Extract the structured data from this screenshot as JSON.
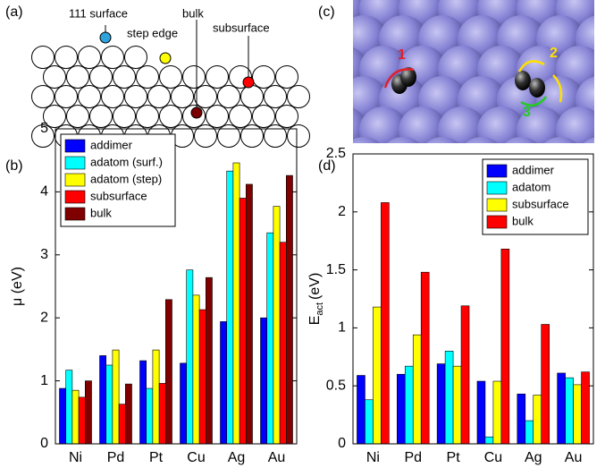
{
  "panel_labels": [
    "(a)",
    "(b)",
    "(c)",
    "(d)"
  ],
  "schematic": {
    "labels": [
      "111 surface",
      "step edge",
      "bulk",
      "subsurface"
    ]
  },
  "snapshot": {
    "labels": [
      "1",
      "2",
      "3"
    ]
  },
  "chart_data": [
    {
      "type": "bar",
      "ylabel": {
        "text": "μ (eV)"
      },
      "categories": [
        "Ni",
        "Pd",
        "Pt",
        "Cu",
        "Ag",
        "Au"
      ],
      "ylim": [
        0,
        5
      ],
      "yticks": [
        0,
        1,
        2,
        3,
        4,
        5
      ],
      "legend": "upper-left",
      "series": [
        {
          "name": "addimer",
          "color": "#0000ff",
          "values": [
            0.88,
            1.4,
            1.32,
            1.28,
            1.94,
            2.0
          ]
        },
        {
          "name": "adatom (surf.)",
          "color": "#00ffff",
          "values": [
            1.17,
            1.25,
            0.88,
            2.76,
            4.33,
            3.35
          ]
        },
        {
          "name": "adatom (step)",
          "color": "#ffff00",
          "values": [
            0.85,
            1.49,
            1.49,
            2.36,
            4.46,
            3.77
          ]
        },
        {
          "name": "subsurface",
          "color": "#ff0000",
          "values": [
            0.74,
            0.63,
            0.96,
            2.13,
            3.9,
            3.2
          ]
        },
        {
          "name": "bulk",
          "color": "#800000",
          "values": [
            1.0,
            0.95,
            2.29,
            2.64,
            4.12,
            4.26
          ]
        }
      ]
    },
    {
      "type": "bar",
      "ylabel": {
        "text": "E",
        "subscript": "act",
        "unit": "(eV)"
      },
      "categories": [
        "Ni",
        "Pd",
        "Pt",
        "Cu",
        "Ag",
        "Au"
      ],
      "ylim": [
        0,
        2.5
      ],
      "yticks": [
        0,
        0.5,
        1,
        1.5,
        2,
        2.5
      ],
      "legend": "upper-right",
      "series": [
        {
          "name": "addimer",
          "color": "#0000ff",
          "values": [
            0.59,
            0.6,
            0.69,
            0.54,
            0.43,
            0.61
          ]
        },
        {
          "name": "adatom",
          "color": "#00ffff",
          "values": [
            0.38,
            0.67,
            0.8,
            0.06,
            0.2,
            0.57
          ]
        },
        {
          "name": "subsurface",
          "color": "#ffff00",
          "values": [
            1.18,
            0.94,
            0.67,
            0.54,
            0.42,
            0.51
          ]
        },
        {
          "name": "bulk",
          "color": "#ff0000",
          "values": [
            2.08,
            1.48,
            1.19,
            1.68,
            1.03,
            0.62
          ]
        }
      ]
    }
  ]
}
